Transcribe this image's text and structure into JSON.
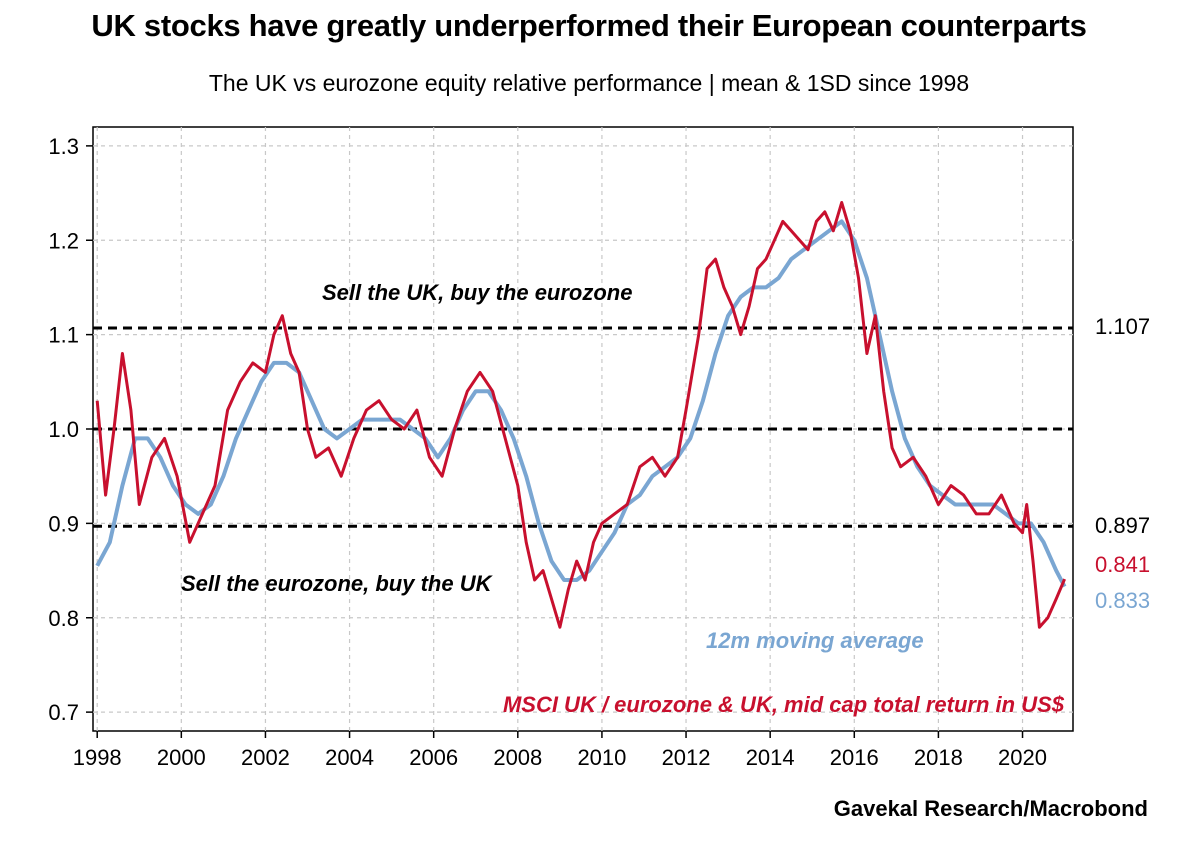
{
  "header": {
    "title": "UK stocks have greatly underperformed their European counterparts",
    "subtitle": "The UK vs eurozone equity relative performance | mean & 1SD since 1998"
  },
  "footer": {
    "source": "Gavekal Research/Macrobond"
  },
  "colors": {
    "series_red": "#c8102e",
    "series_blue": "#7aa6d2",
    "reference": "#000000",
    "grid": "#c8c8c8"
  },
  "chart_data": {
    "type": "line",
    "title": "UK stocks have greatly underperformed their European counterparts",
    "subtitle": "The UK vs eurozone equity relative performance | mean & 1SD since 1998",
    "xlabel": "",
    "ylabel": "",
    "xlim": [
      1997.9,
      2021.2
    ],
    "ylim": [
      0.68,
      1.32
    ],
    "x_ticks": [
      "1998",
      "2000",
      "2002",
      "2004",
      "2006",
      "2008",
      "2010",
      "2012",
      "2014",
      "2016",
      "2018",
      "2020"
    ],
    "y_ticks": [
      "0.7",
      "0.8",
      "0.9",
      "1.0",
      "1.1",
      "1.2",
      "1.3"
    ],
    "grid": true,
    "series": [
      {
        "name": "MSCI UK / eurozone & UK, mid cap total return in US$",
        "color": "#c8102e",
        "end_label": "0.841",
        "x": [
          1998.0,
          1998.2,
          1998.4,
          1998.6,
          1998.8,
          1999.0,
          1999.3,
          1999.6,
          1999.9,
          2000.2,
          2000.5,
          2000.8,
          2001.1,
          2001.4,
          2001.7,
          2002.0,
          2002.2,
          2002.4,
          2002.6,
          2002.8,
          2003.0,
          2003.2,
          2003.5,
          2003.8,
          2004.1,
          2004.4,
          2004.7,
          2005.0,
          2005.3,
          2005.6,
          2005.9,
          2006.2,
          2006.5,
          2006.8,
          2007.1,
          2007.4,
          2007.7,
          2008.0,
          2008.2,
          2008.4,
          2008.6,
          2008.8,
          2009.0,
          2009.2,
          2009.4,
          2009.6,
          2009.8,
          2010.0,
          2010.3,
          2010.6,
          2010.9,
          2011.2,
          2011.5,
          2011.8,
          2012.0,
          2012.3,
          2012.5,
          2012.7,
          2012.9,
          2013.1,
          2013.3,
          2013.5,
          2013.7,
          2013.9,
          2014.1,
          2014.3,
          2014.5,
          2014.7,
          2014.9,
          2015.1,
          2015.3,
          2015.5,
          2015.7,
          2015.9,
          2016.1,
          2016.3,
          2016.5,
          2016.7,
          2016.9,
          2017.1,
          2017.4,
          2017.7,
          2018.0,
          2018.3,
          2018.6,
          2018.9,
          2019.2,
          2019.5,
          2019.8,
          2020.0,
          2020.1,
          2020.25,
          2020.4,
          2020.6,
          2020.8,
          2021.0
        ],
        "y": [
          1.03,
          0.93,
          1.0,
          1.08,
          1.02,
          0.92,
          0.97,
          0.99,
          0.95,
          0.88,
          0.91,
          0.94,
          1.02,
          1.05,
          1.07,
          1.06,
          1.1,
          1.12,
          1.08,
          1.06,
          1.0,
          0.97,
          0.98,
          0.95,
          0.99,
          1.02,
          1.03,
          1.01,
          1.0,
          1.02,
          0.97,
          0.95,
          1.0,
          1.04,
          1.06,
          1.04,
          0.99,
          0.94,
          0.88,
          0.84,
          0.85,
          0.82,
          0.79,
          0.83,
          0.86,
          0.84,
          0.88,
          0.9,
          0.91,
          0.92,
          0.96,
          0.97,
          0.95,
          0.97,
          1.02,
          1.1,
          1.17,
          1.18,
          1.15,
          1.13,
          1.1,
          1.13,
          1.17,
          1.18,
          1.2,
          1.22,
          1.21,
          1.2,
          1.19,
          1.22,
          1.23,
          1.21,
          1.24,
          1.21,
          1.16,
          1.08,
          1.12,
          1.04,
          0.98,
          0.96,
          0.97,
          0.95,
          0.92,
          0.94,
          0.93,
          0.91,
          0.91,
          0.93,
          0.9,
          0.89,
          0.92,
          0.86,
          0.79,
          0.8,
          0.82,
          0.841
        ]
      },
      {
        "name": "12m moving average",
        "color": "#7aa6d2",
        "end_label": "0.833",
        "x": [
          1998.0,
          1998.3,
          1998.6,
          1998.9,
          1999.2,
          1999.5,
          1999.8,
          2000.1,
          2000.4,
          2000.7,
          2001.0,
          2001.3,
          2001.6,
          2001.9,
          2002.2,
          2002.5,
          2002.8,
          2003.1,
          2003.4,
          2003.7,
          2004.0,
          2004.3,
          2004.6,
          2004.9,
          2005.2,
          2005.5,
          2005.8,
          2006.1,
          2006.4,
          2006.7,
          2007.0,
          2007.3,
          2007.6,
          2007.9,
          2008.2,
          2008.5,
          2008.8,
          2009.1,
          2009.4,
          2009.7,
          2010.0,
          2010.3,
          2010.6,
          2010.9,
          2011.2,
          2011.5,
          2011.8,
          2012.1,
          2012.4,
          2012.7,
          2013.0,
          2013.3,
          2013.6,
          2013.9,
          2014.2,
          2014.5,
          2014.8,
          2015.1,
          2015.4,
          2015.7,
          2016.0,
          2016.3,
          2016.6,
          2016.9,
          2017.2,
          2017.5,
          2017.8,
          2018.1,
          2018.4,
          2018.7,
          2019.0,
          2019.3,
          2019.6,
          2019.9,
          2020.2,
          2020.5,
          2020.8,
          2021.0
        ],
        "y": [
          0.855,
          0.88,
          0.94,
          0.99,
          0.99,
          0.97,
          0.94,
          0.92,
          0.91,
          0.92,
          0.95,
          0.99,
          1.02,
          1.05,
          1.07,
          1.07,
          1.06,
          1.03,
          1.0,
          0.99,
          1.0,
          1.01,
          1.01,
          1.01,
          1.01,
          1.0,
          0.99,
          0.97,
          0.99,
          1.02,
          1.04,
          1.04,
          1.02,
          0.99,
          0.95,
          0.9,
          0.86,
          0.84,
          0.84,
          0.85,
          0.87,
          0.89,
          0.92,
          0.93,
          0.95,
          0.96,
          0.97,
          0.99,
          1.03,
          1.08,
          1.12,
          1.14,
          1.15,
          1.15,
          1.16,
          1.18,
          1.19,
          1.2,
          1.21,
          1.22,
          1.2,
          1.16,
          1.1,
          1.04,
          0.99,
          0.96,
          0.94,
          0.93,
          0.92,
          0.92,
          0.92,
          0.92,
          0.91,
          0.9,
          0.9,
          0.88,
          0.85,
          0.833
        ]
      }
    ],
    "reference_lines": [
      {
        "name": "mean + 1SD",
        "value": 1.107,
        "label": "1.107"
      },
      {
        "name": "mean",
        "value": 1.0,
        "label": ""
      },
      {
        "name": "mean - 1SD",
        "value": 0.897,
        "label": "0.897"
      }
    ],
    "annotations": {
      "sell_uk": "Sell the UK, buy the eurozone",
      "sell_eurozone": "Sell the eurozone, buy the UK",
      "ma_label": "12m moving average",
      "series_label": "MSCI UK / eurozone & UK, mid cap total return in US$"
    }
  }
}
